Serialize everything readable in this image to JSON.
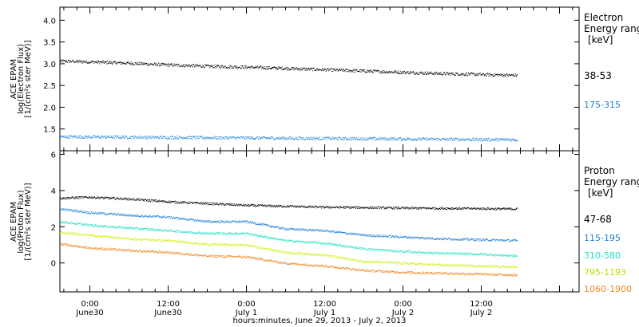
{
  "chart_data": {
    "type": "scatter",
    "xlabel": "hours:minutes, June 29, 2013 - July  2, 2013",
    "x_ticks": [
      {
        "time": "0:00",
        "day": "June30",
        "hour": 24
      },
      {
        "time": "12:00",
        "day": "June30",
        "hour": 36
      },
      {
        "time": "0:00",
        "day": "July 1",
        "hour": 48
      },
      {
        "time": "12:00",
        "day": "July 1",
        "hour": 60
      },
      {
        "time": "0:00",
        "day": "July 2",
        "hour": 72
      },
      {
        "time": "12:00",
        "day": "July 2",
        "hour": 84
      }
    ],
    "xlim": [
      19.4,
      99
    ],
    "data_end_hour": 89.5,
    "panels": [
      {
        "id": "electron",
        "ylabel_lines": [
          "ACE EPAM",
          "log(Electron Flux)",
          "[1/(cm²s ster MeV)]"
        ],
        "ylim": [
          1.0,
          4.3
        ],
        "yticks": [
          "1.5",
          "2.0",
          "2.5",
          "3.0",
          "3.5",
          "4.0"
        ],
        "legend_title": [
          "Electron",
          "Energy ranges"
        ],
        "legend_unit": "[keV]",
        "series": [
          {
            "name": "38-53",
            "color": "#000000",
            "x": [
              19.4,
              24,
              30,
              36,
              42,
              48,
              54,
              60,
              66,
              72,
              78,
              84,
              89.5
            ],
            "y": [
              3.07,
              3.05,
              3.02,
              2.98,
              2.95,
              2.93,
              2.9,
              2.87,
              2.84,
              2.81,
              2.78,
              2.76,
              2.74
            ]
          },
          {
            "name": "175-315",
            "color": "#1f7fd6",
            "x": [
              19.4,
              30,
              40,
              50,
              60,
              70,
              80,
              89.5
            ],
            "y": [
              1.33,
              1.32,
              1.31,
              1.3,
              1.29,
              1.28,
              1.27,
              1.26
            ]
          }
        ]
      },
      {
        "id": "proton",
        "ylabel_lines": [
          "ACE EPAM",
          "log(Proton Flux)",
          "[1/(cm²s ster MeV)]"
        ],
        "ylim": [
          -1.6,
          6.2
        ],
        "yticks": [
          "0",
          "2",
          "4",
          "6"
        ],
        "ytick_values": [
          0,
          2,
          4,
          6
        ],
        "legend_title": [
          "Proton",
          "Energy ranges"
        ],
        "legend_unit": "[keV]",
        "series": [
          {
            "name": "47-68",
            "color": "#000000",
            "x": [
              19.4,
              24,
              30,
              36,
              42,
              48,
              54,
              60,
              66,
              72,
              78,
              84,
              89.5
            ],
            "y": [
              3.6,
              3.65,
              3.55,
              3.4,
              3.3,
              3.2,
              3.15,
              3.1,
              3.08,
              3.05,
              3.04,
              3.02,
              3.0
            ]
          },
          {
            "name": "115-195",
            "color": "#1f7fd6",
            "x": [
              19.4,
              24,
              30,
              36,
              42,
              48,
              54,
              60,
              66,
              72,
              78,
              84,
              89.5
            ],
            "y": [
              3.0,
              2.8,
              2.65,
              2.55,
              2.3,
              2.3,
              1.9,
              1.8,
              1.55,
              1.45,
              1.35,
              1.3,
              1.25
            ]
          },
          {
            "name": "310-580",
            "color": "#22e0c8",
            "x": [
              19.4,
              24,
              30,
              36,
              42,
              48,
              54,
              60,
              66,
              72,
              78,
              84,
              89.5
            ],
            "y": [
              2.3,
              2.1,
              1.95,
              1.8,
              1.65,
              1.65,
              1.25,
              1.1,
              0.8,
              0.65,
              0.55,
              0.5,
              0.4
            ]
          },
          {
            "name": "795-1193",
            "color": "#d8ee10",
            "x": [
              19.4,
              24,
              30,
              36,
              42,
              48,
              54,
              60,
              66,
              72,
              78,
              84,
              89.5
            ],
            "y": [
              1.7,
              1.55,
              1.35,
              1.25,
              1.05,
              1.0,
              0.6,
              0.45,
              0.1,
              0.0,
              -0.1,
              -0.15,
              -0.2
            ]
          },
          {
            "name": "1060-1900",
            "color": "#f0861e",
            "x": [
              19.4,
              24,
              30,
              36,
              42,
              48,
              54,
              60,
              66,
              72,
              78,
              84,
              89.5
            ],
            "y": [
              1.05,
              0.85,
              0.7,
              0.6,
              0.4,
              0.35,
              0.0,
              -0.15,
              -0.4,
              -0.5,
              -0.55,
              -0.6,
              -0.65
            ]
          }
        ]
      }
    ]
  }
}
